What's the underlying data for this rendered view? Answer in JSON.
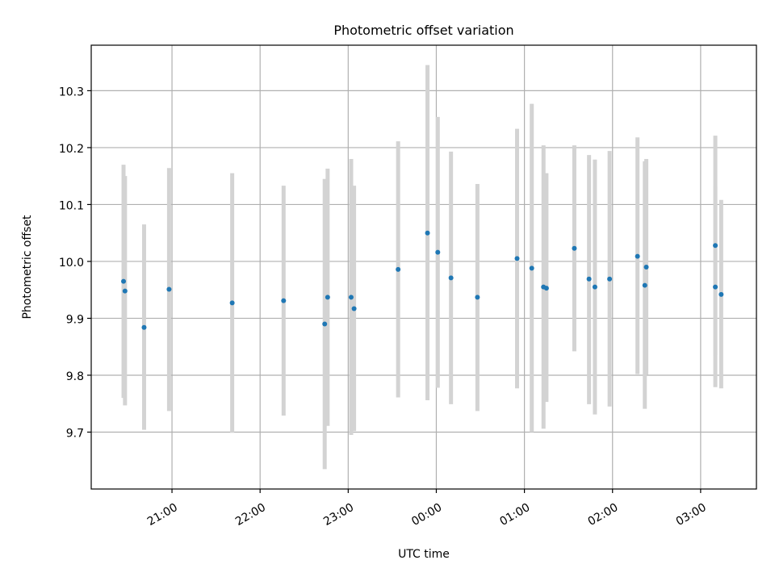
{
  "chart_data": {
    "type": "scatter",
    "title": "Photometric offset variation",
    "xlabel": "UTC time",
    "ylabel": "Photometric offset",
    "x_axis": {
      "kind": "time",
      "ticks": [
        "21:00",
        "22:00",
        "23:00",
        "00:00",
        "01:00",
        "02:00",
        "03:00"
      ],
      "range": [
        "20:05",
        "03:38"
      ]
    },
    "y_axis": {
      "ticks": [
        "9.7",
        "9.8",
        "9.9",
        "10.0",
        "10.1",
        "10.2",
        "10.3"
      ],
      "range": [
        9.6,
        10.38
      ]
    },
    "grid": true,
    "colors": {
      "marker": "#1f77b4",
      "errorbar": "#d3d3d3",
      "grid": "#b0b0b0"
    },
    "points": [
      {
        "time": "20:27",
        "y": 9.965,
        "lo": 9.76,
        "hi": 10.17
      },
      {
        "time": "20:28",
        "y": 9.948,
        "lo": 9.747,
        "hi": 10.15
      },
      {
        "time": "20:41",
        "y": 9.884,
        "lo": 9.704,
        "hi": 10.065
      },
      {
        "time": "20:58",
        "y": 9.951,
        "lo": 9.737,
        "hi": 10.164
      },
      {
        "time": "21:41",
        "y": 9.927,
        "lo": 9.699,
        "hi": 10.155
      },
      {
        "time": "22:16",
        "y": 9.931,
        "lo": 9.729,
        "hi": 10.133
      },
      {
        "time": "22:44",
        "y": 9.89,
        "lo": 9.635,
        "hi": 10.145
      },
      {
        "time": "22:46",
        "y": 9.937,
        "lo": 9.711,
        "hi": 10.163
      },
      {
        "time": "23:02",
        "y": 9.937,
        "lo": 9.695,
        "hi": 10.18
      },
      {
        "time": "23:04",
        "y": 9.917,
        "lo": 9.702,
        "hi": 10.133
      },
      {
        "time": "23:34",
        "y": 9.986,
        "lo": 9.761,
        "hi": 10.211
      },
      {
        "time": "23:54",
        "y": 10.05,
        "lo": 9.756,
        "hi": 10.345
      },
      {
        "time": "00:01",
        "y": 10.016,
        "lo": 9.778,
        "hi": 10.254
      },
      {
        "time": "00:10",
        "y": 9.971,
        "lo": 9.749,
        "hi": 10.193
      },
      {
        "time": "00:28",
        "y": 9.937,
        "lo": 9.737,
        "hi": 10.136
      },
      {
        "time": "00:55",
        "y": 10.005,
        "lo": 9.777,
        "hi": 10.233
      },
      {
        "time": "01:05",
        "y": 9.988,
        "lo": 9.7,
        "hi": 10.277
      },
      {
        "time": "01:13",
        "y": 9.955,
        "lo": 9.706,
        "hi": 10.204
      },
      {
        "time": "01:15",
        "y": 9.953,
        "lo": 9.753,
        "hi": 10.155
      },
      {
        "time": "01:34",
        "y": 10.023,
        "lo": 9.842,
        "hi": 10.204
      },
      {
        "time": "01:44",
        "y": 9.969,
        "lo": 9.749,
        "hi": 10.187
      },
      {
        "time": "01:48",
        "y": 9.955,
        "lo": 9.731,
        "hi": 10.179
      },
      {
        "time": "01:58",
        "y": 9.969,
        "lo": 9.745,
        "hi": 10.194
      },
      {
        "time": "02:17",
        "y": 10.009,
        "lo": 9.802,
        "hi": 10.218
      },
      {
        "time": "02:22",
        "y": 9.958,
        "lo": 9.741,
        "hi": 10.176
      },
      {
        "time": "02:23",
        "y": 9.99,
        "lo": 9.801,
        "hi": 10.18
      },
      {
        "time": "03:10",
        "y": 9.955,
        "lo": 9.779,
        "hi": 10.131
      },
      {
        "time": "03:10",
        "y": 10.028,
        "lo": 9.835,
        "hi": 10.221
      },
      {
        "time": "03:14",
        "y": 9.942,
        "lo": 9.777,
        "hi": 10.108
      }
    ]
  }
}
